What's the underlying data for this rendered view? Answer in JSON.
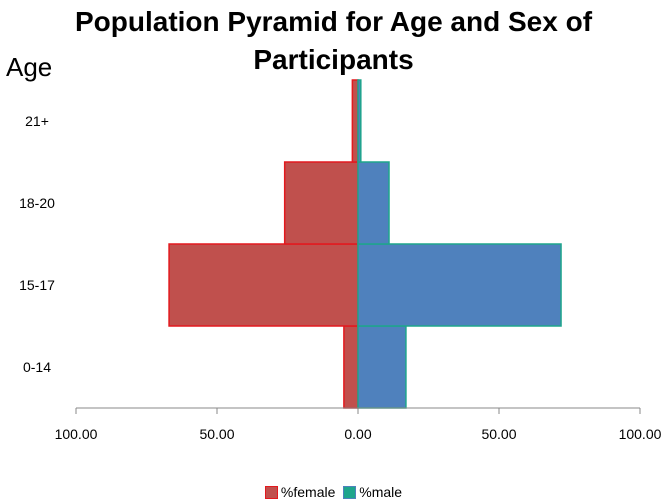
{
  "chart_data": {
    "type": "bar",
    "orientation": "horizontal-pyramid",
    "title_line1": "Population Pyramid for Age and Sex of",
    "title_line2": "Participants",
    "ylabel": "Age",
    "categories": [
      "0-14",
      "15-17",
      "18-20",
      "21+"
    ],
    "series": [
      {
        "name": "%female",
        "values": [
          -5,
          -67,
          -26,
          -2
        ],
        "color": "#c0504d",
        "edge": "#e3191e"
      },
      {
        "name": "%male",
        "values": [
          17,
          72,
          11,
          1
        ],
        "color": "#4f81bd",
        "edge": "#1ea58c"
      }
    ],
    "xlim": [
      -100,
      100
    ],
    "x_ticks": [
      -100,
      -50,
      0,
      50,
      100
    ],
    "x_tick_labels": [
      "100.00",
      "50.00",
      "0.00",
      "50.00",
      "100.00"
    ],
    "grid": false,
    "legend_position": "bottom"
  }
}
